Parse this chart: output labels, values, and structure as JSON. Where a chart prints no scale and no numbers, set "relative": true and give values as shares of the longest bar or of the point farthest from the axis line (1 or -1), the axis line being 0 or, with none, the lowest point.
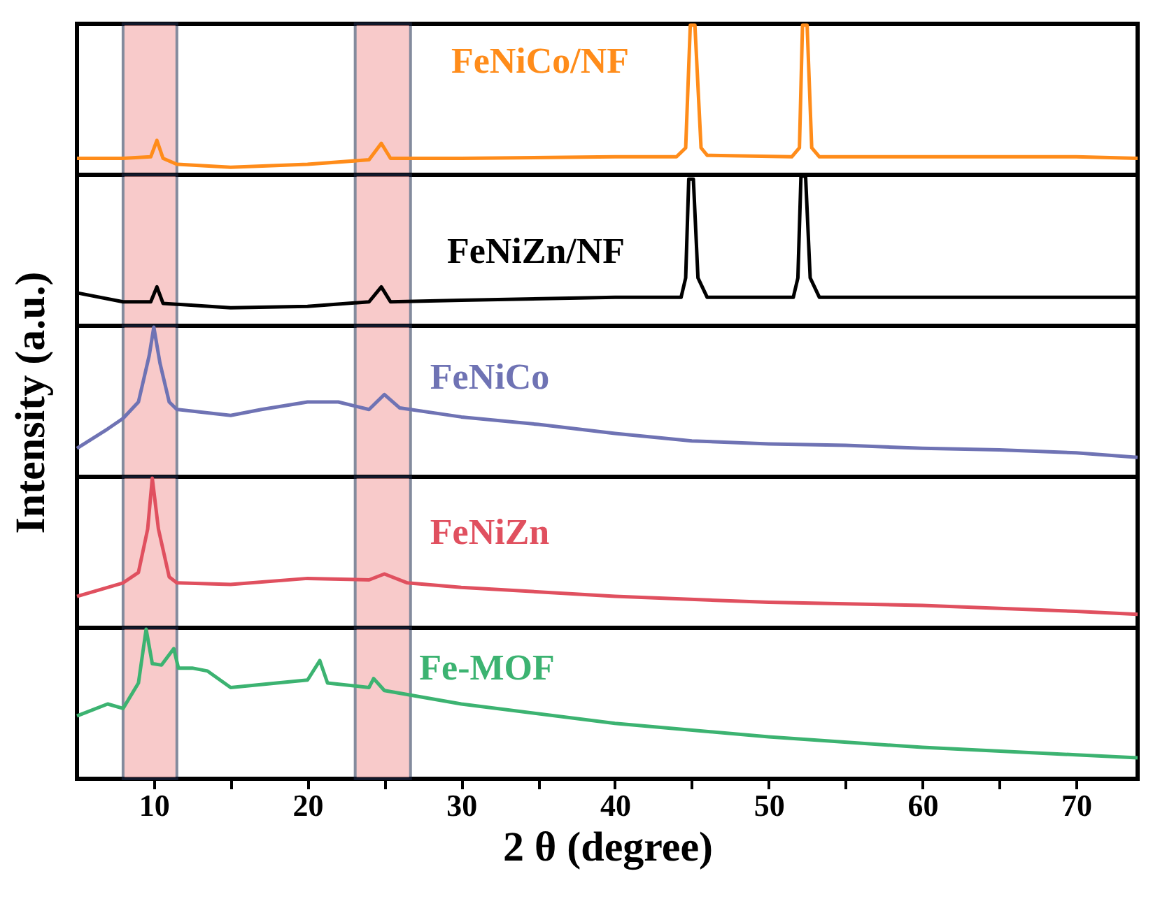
{
  "chart_data": [
    {
      "type": "line",
      "relative": true,
      "legend": false,
      "grid": false,
      "tick_labels": false,
      "xlim": [
        5,
        74
      ],
      "bands": [
        {
          "axis": "x",
          "from": 8,
          "to": 11.5,
          "color": "#f4a0a0"
        },
        {
          "axis": "x",
          "from": 23.1,
          "to": 26.7,
          "color": "#f4a0a0"
        }
      ],
      "series": [
        {
          "name": "FeNiCo/NF",
          "color": "#ff8c1a",
          "x": [
            5,
            8,
            9.8,
            10.2,
            10.6,
            11.5,
            15,
            20,
            24,
            24.8,
            25.4,
            30,
            40,
            44,
            44.6,
            44.9,
            45.2,
            45.6,
            46,
            51.5,
            52,
            52.2,
            52.5,
            52.8,
            53.3,
            60,
            70,
            74
          ],
          "values": [
            0.11,
            0.11,
            0.12,
            0.23,
            0.11,
            0.07,
            0.05,
            0.07,
            0.1,
            0.21,
            0.11,
            0.11,
            0.12,
            0.12,
            0.18,
            1,
            1,
            0.18,
            0.13,
            0.12,
            0.18,
            1,
            1,
            0.18,
            0.12,
            0.12,
            0.12,
            0.11
          ]
        }
      ]
    },
    {
      "type": "line",
      "relative": true,
      "legend": false,
      "grid": false,
      "tick_labels": false,
      "xlim": [
        5,
        74
      ],
      "bands": [
        {
          "axis": "x",
          "from": 8,
          "to": 11.5,
          "color": "#f4a0a0"
        },
        {
          "axis": "x",
          "from": 23.1,
          "to": 26.7,
          "color": "#f4a0a0"
        }
      ],
      "series": [
        {
          "name": "FeNiZn/NF",
          "color": "#000000",
          "x": [
            5,
            8,
            9.8,
            10.2,
            10.6,
            15,
            20,
            24,
            24.8,
            25.4,
            30,
            40,
            44.3,
            44.6,
            44.8,
            45.1,
            45.4,
            46,
            51.6,
            51.9,
            52.1,
            52.4,
            52.7,
            53.3,
            60,
            74
          ],
          "values": [
            0.22,
            0.16,
            0.16,
            0.26,
            0.15,
            0.12,
            0.13,
            0.16,
            0.26,
            0.16,
            0.17,
            0.19,
            0.19,
            0.32,
            0.98,
            0.98,
            0.32,
            0.19,
            0.19,
            0.32,
            1,
            1,
            0.32,
            0.19,
            0.19,
            0.19
          ]
        }
      ]
    },
    {
      "type": "line",
      "relative": true,
      "legend": false,
      "grid": false,
      "tick_labels": false,
      "xlim": [
        5,
        74
      ],
      "ylabel": "Intensity (a.u.)",
      "bands": [
        {
          "axis": "x",
          "from": 8,
          "to": 11.5,
          "color": "#f4a0a0"
        },
        {
          "axis": "x",
          "from": 23.1,
          "to": 26.7,
          "color": "#f4a0a0"
        }
      ],
      "series": [
        {
          "name": "FeNiCo",
          "color": "#6f73b4",
          "x": [
            5,
            7,
            8,
            9,
            9.7,
            10,
            10.4,
            11,
            11.5,
            15,
            17,
            20,
            22,
            24,
            25,
            26,
            30,
            35,
            40,
            45,
            50,
            55,
            60,
            65,
            70,
            74
          ],
          "values": [
            0.19,
            0.32,
            0.39,
            0.5,
            0.81,
            1,
            0.76,
            0.5,
            0.45,
            0.41,
            0.45,
            0.5,
            0.5,
            0.45,
            0.55,
            0.46,
            0.4,
            0.35,
            0.29,
            0.24,
            0.22,
            0.21,
            0.19,
            0.18,
            0.16,
            0.13
          ]
        }
      ]
    },
    {
      "type": "line",
      "relative": true,
      "legend": false,
      "grid": false,
      "tick_labels": false,
      "xlim": [
        5,
        74
      ],
      "bands": [
        {
          "axis": "x",
          "from": 8,
          "to": 11.5,
          "color": "#f4a0a0"
        },
        {
          "axis": "x",
          "from": 23.1,
          "to": 26.7,
          "color": "#f4a0a0"
        }
      ],
      "series": [
        {
          "name": "FeNiZn",
          "color": "#e0505f",
          "x": [
            5,
            8,
            9,
            9.6,
            9.9,
            10.3,
            11,
            11.5,
            15,
            20,
            24,
            25,
            26.5,
            30,
            40,
            50,
            60,
            70,
            74
          ],
          "values": [
            0.21,
            0.3,
            0.37,
            0.66,
            1,
            0.66,
            0.34,
            0.3,
            0.29,
            0.33,
            0.32,
            0.36,
            0.3,
            0.27,
            0.21,
            0.17,
            0.15,
            0.11,
            0.09
          ]
        }
      ]
    },
    {
      "type": "line",
      "relative": true,
      "legend": false,
      "grid": false,
      "tick_labels": "x",
      "xlim": [
        5,
        74
      ],
      "xlabel": "2 θ  (degree)",
      "xticks": [
        10,
        {
          "value": 15,
          "label": null
        },
        20,
        {
          "value": 25,
          "label": null
        },
        30,
        {
          "value": 35,
          "label": null
        },
        40,
        {
          "value": 45,
          "label": null
        },
        50,
        {
          "value": 55,
          "label": null
        },
        60,
        {
          "value": 65,
          "label": null
        },
        70
      ],
      "bands": [
        {
          "axis": "x",
          "from": 8,
          "to": 11.5,
          "color": "#f4a0a0"
        },
        {
          "axis": "x",
          "from": 23.1,
          "to": 26.7,
          "color": "#f4a0a0"
        }
      ],
      "series": [
        {
          "name": "Fe-MOF",
          "color": "#3cb371",
          "x": [
            5,
            7,
            8,
            9,
            9.5,
            9.9,
            10.5,
            11.3,
            11.6,
            12.5,
            13.5,
            15,
            18,
            20,
            20.8,
            21.3,
            24,
            24.3,
            25,
            30,
            40,
            50,
            60,
            70,
            74
          ],
          "values": [
            0.42,
            0.5,
            0.47,
            0.64,
            1,
            0.77,
            0.76,
            0.87,
            0.74,
            0.74,
            0.72,
            0.61,
            0.64,
            0.66,
            0.79,
            0.64,
            0.61,
            0.67,
            0.59,
            0.5,
            0.37,
            0.28,
            0.21,
            0.16,
            0.14
          ]
        }
      ]
    }
  ]
}
